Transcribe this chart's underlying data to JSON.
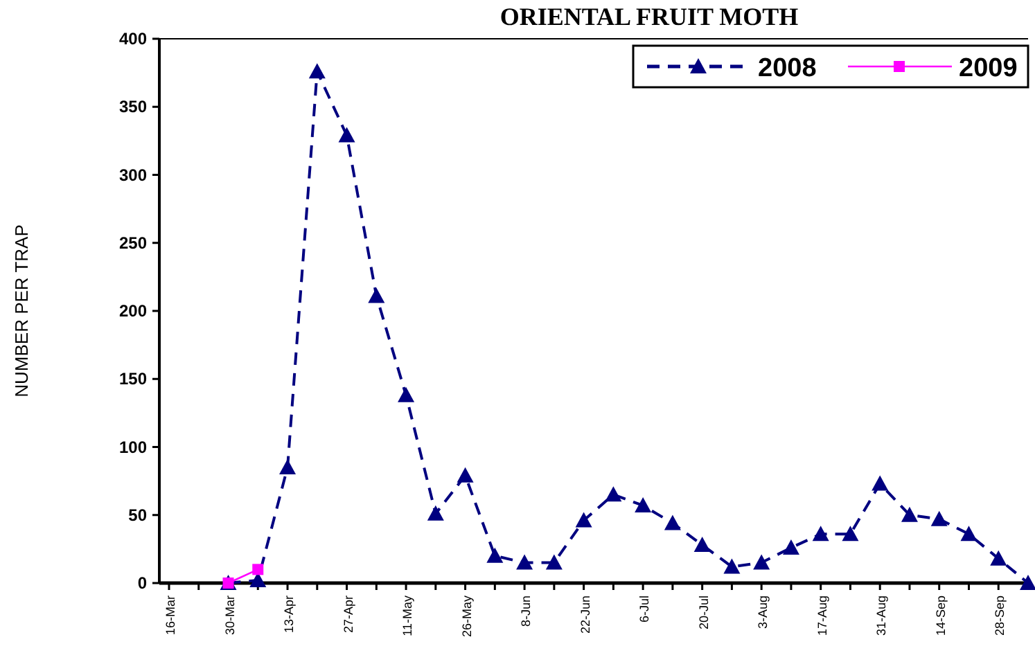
{
  "chart_data": {
    "type": "line",
    "title": "ORIENTAL FRUIT MOTH",
    "ylabel": "NUMBER PER TRAP",
    "categories": [
      "16-Mar",
      null,
      "30-Mar",
      null,
      "13-Apr",
      null,
      "27-Apr",
      null,
      "11-May",
      null,
      "26-May",
      null,
      "8-Jun",
      null,
      "22-Jun",
      null,
      "6-Jul",
      null,
      "20-Jul",
      null,
      "3-Aug",
      null,
      "17-Aug",
      null,
      "31-Aug",
      null,
      "14-Sep",
      null,
      "28-Sep",
      null
    ],
    "series": [
      {
        "name": "2008",
        "color": "#000080",
        "marker": "triangle",
        "line_style": "dashed",
        "values": [
          null,
          null,
          0,
          2,
          85,
          376,
          329,
          211,
          138,
          51,
          79,
          20,
          15,
          15,
          46,
          65,
          57,
          44,
          28,
          12,
          15,
          26,
          36,
          36,
          73,
          50,
          47,
          36,
          18,
          0
        ]
      },
      {
        "name": "2009",
        "color": "#ff00ff",
        "marker": "square",
        "line_style": "solid",
        "values": [
          null,
          null,
          0,
          10,
          null,
          null,
          null,
          null,
          null,
          null,
          null,
          null,
          null,
          null,
          null,
          null,
          null,
          null,
          null,
          null,
          null,
          null,
          null,
          null,
          null,
          null,
          null,
          null,
          null,
          null
        ]
      }
    ],
    "ylim": [
      0,
      400
    ],
    "yticks": [
      0,
      50,
      100,
      150,
      200,
      250,
      300,
      350,
      400
    ],
    "grid": false,
    "legend": "top right"
  }
}
